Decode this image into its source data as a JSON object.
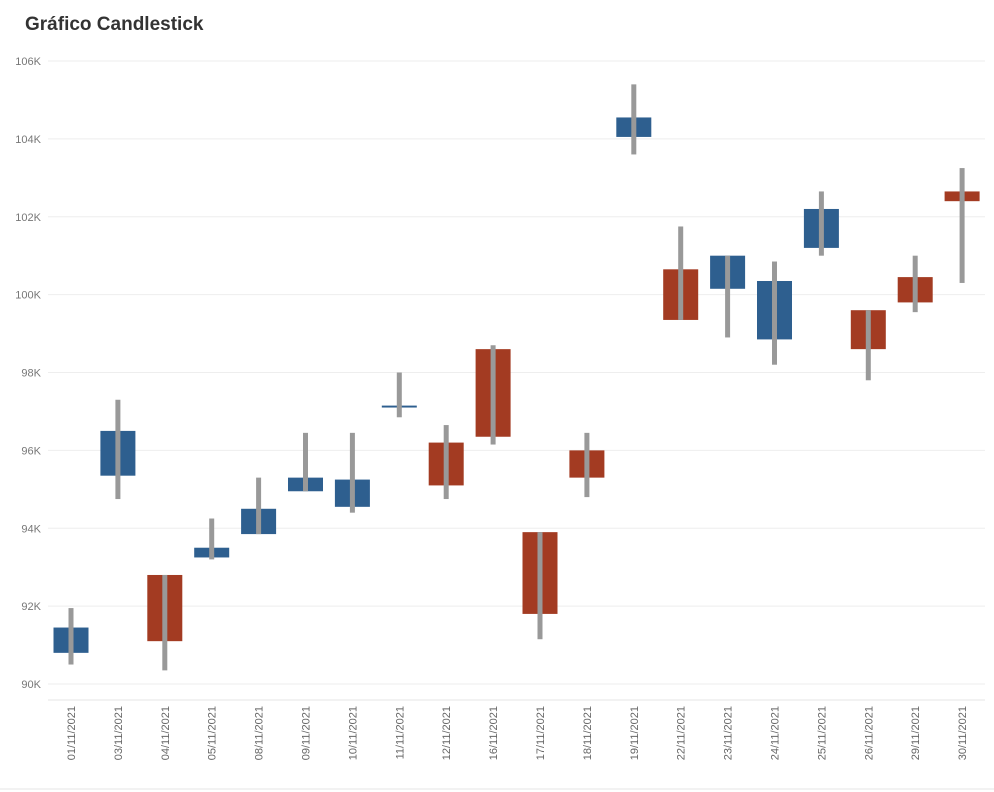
{
  "title": "Gráfico Candlestick",
  "colors": {
    "up": "#2e5f8f",
    "down": "#a33b22",
    "wick": "#999999",
    "grid": "#eeeeee"
  },
  "chart_data": {
    "type": "candlestick",
    "title": "Gráfico Candlestick",
    "xlabel": "",
    "ylabel": "",
    "ylim": [
      90000,
      106000
    ],
    "y_ticks": [
      90000,
      92000,
      94000,
      96000,
      98000,
      100000,
      102000,
      104000,
      106000
    ],
    "y_tick_labels": [
      "90K",
      "92K",
      "94K",
      "96K",
      "98K",
      "100K",
      "102K",
      "104K",
      "106K"
    ],
    "grid": true,
    "categories": [
      "01/11/2021",
      "03/11/2021",
      "04/11/2021",
      "05/11/2021",
      "08/11/2021",
      "09/11/2021",
      "10/11/2021",
      "11/11/2021",
      "12/11/2021",
      "16/11/2021",
      "17/11/2021",
      "18/11/2021",
      "19/11/2021",
      "22/11/2021",
      "23/11/2021",
      "24/11/2021",
      "25/11/2021",
      "26/11/2021",
      "29/11/2021",
      "30/11/2021"
    ],
    "series": [
      {
        "date": "01/11/2021",
        "body_low": 90800,
        "body_high": 91450,
        "low": 90500,
        "high": 91950,
        "direction": "up"
      },
      {
        "date": "03/11/2021",
        "body_low": 95350,
        "body_high": 96500,
        "low": 94750,
        "high": 97300,
        "direction": "up"
      },
      {
        "date": "04/11/2021",
        "body_low": 91100,
        "body_high": 92800,
        "low": 90350,
        "high": 92800,
        "direction": "down"
      },
      {
        "date": "05/11/2021",
        "body_low": 93250,
        "body_high": 93500,
        "low": 93200,
        "high": 94250,
        "direction": "up"
      },
      {
        "date": "08/11/2021",
        "body_low": 93850,
        "body_high": 94500,
        "low": 93850,
        "high": 95300,
        "direction": "up"
      },
      {
        "date": "09/11/2021",
        "body_low": 94950,
        "body_high": 95300,
        "low": 94950,
        "high": 96450,
        "direction": "up"
      },
      {
        "date": "10/11/2021",
        "body_low": 94550,
        "body_high": 95250,
        "low": 94400,
        "high": 96450,
        "direction": "up"
      },
      {
        "date": "11/11/2021",
        "body_low": 97100,
        "body_high": 97150,
        "low": 96850,
        "high": 98000,
        "direction": "up"
      },
      {
        "date": "12/11/2021",
        "body_low": 95100,
        "body_high": 96200,
        "low": 94750,
        "high": 96650,
        "direction": "down"
      },
      {
        "date": "16/11/2021",
        "body_low": 96350,
        "body_high": 98600,
        "low": 96150,
        "high": 98700,
        "direction": "down"
      },
      {
        "date": "17/11/2021",
        "body_low": 91800,
        "body_high": 93900,
        "low": 91150,
        "high": 93900,
        "direction": "down"
      },
      {
        "date": "18/11/2021",
        "body_low": 95300,
        "body_high": 96000,
        "low": 94800,
        "high": 96450,
        "direction": "down"
      },
      {
        "date": "19/11/2021",
        "body_low": 104050,
        "body_high": 104550,
        "low": 103600,
        "high": 105400,
        "direction": "up"
      },
      {
        "date": "22/11/2021",
        "body_low": 99350,
        "body_high": 100650,
        "low": 99350,
        "high": 101750,
        "direction": "down"
      },
      {
        "date": "23/11/2021",
        "body_low": 100150,
        "body_high": 101000,
        "low": 98900,
        "high": 101000,
        "direction": "up"
      },
      {
        "date": "24/11/2021",
        "body_low": 98850,
        "body_high": 100350,
        "low": 98200,
        "high": 100850,
        "direction": "up"
      },
      {
        "date": "25/11/2021",
        "body_low": 101200,
        "body_high": 102200,
        "low": 101000,
        "high": 102650,
        "direction": "up"
      },
      {
        "date": "26/11/2021",
        "body_low": 98600,
        "body_high": 99600,
        "low": 97800,
        "high": 99600,
        "direction": "down"
      },
      {
        "date": "29/11/2021",
        "body_low": 99800,
        "body_high": 100450,
        "low": 99550,
        "high": 101000,
        "direction": "down"
      },
      {
        "date": "30/11/2021",
        "body_low": 102400,
        "body_high": 102650,
        "low": 100300,
        "high": 103250,
        "direction": "down"
      }
    ]
  }
}
